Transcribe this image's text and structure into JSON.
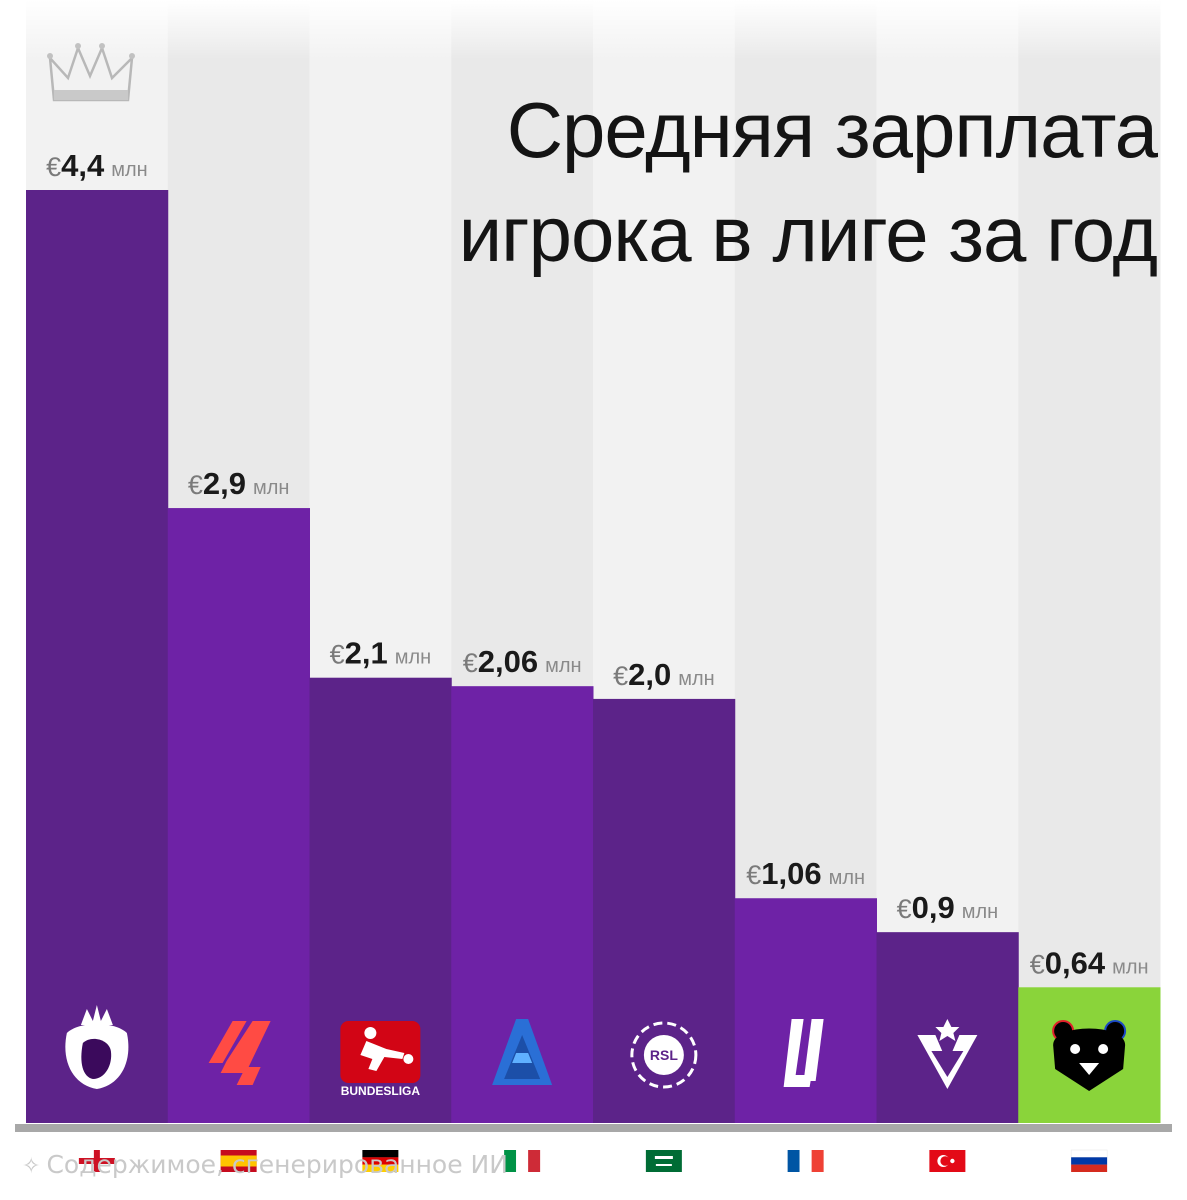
{
  "title": {
    "line1": "Средняя зарплата",
    "line2": "игрока в лиге за год"
  },
  "footer_note": "Содержимое, сгенерированное ИИ",
  "chart_data": {
    "type": "bar",
    "title": "Средняя зарплата игрока в лиге за год",
    "currency_symbol": "€",
    "unit": "млн",
    "categories": [
      "Premier League",
      "LaLiga",
      "Bundesliga",
      "Serie A",
      "Saudi Pro League",
      "Ligue 1",
      "Süper Lig",
      "РПЛ"
    ],
    "values": [
      4.4,
      2.9,
      2.1,
      2.06,
      2.0,
      1.06,
      0.9,
      0.64
    ],
    "value_labels": [
      "4,4",
      "2,9",
      "2,1",
      "2,06",
      "2,0",
      "1,06",
      "0,9",
      "0,64"
    ],
    "countries": [
      "england",
      "spain",
      "germany",
      "italy",
      "saudi-arabia",
      "france",
      "turkey",
      "russia"
    ],
    "logos": [
      "premier-league-logo",
      "laliga-logo",
      "bundesliga-logo",
      "serie-a-logo",
      "rsl-logo",
      "ligue1-logo",
      "super-lig-logo",
      "rpl-logo"
    ],
    "logo_texts": {
      "bundesliga": "BUNDESLIGA",
      "rsl": "RSL"
    },
    "colors": [
      "#5c2389",
      "#6e22a6",
      "#5c2389",
      "#6e22a6",
      "#5c2389",
      "#6e22a6",
      "#5c2389",
      "#8ad43a"
    ],
    "ylim": [
      0,
      4.4
    ],
    "grid": false,
    "legend": "none"
  }
}
